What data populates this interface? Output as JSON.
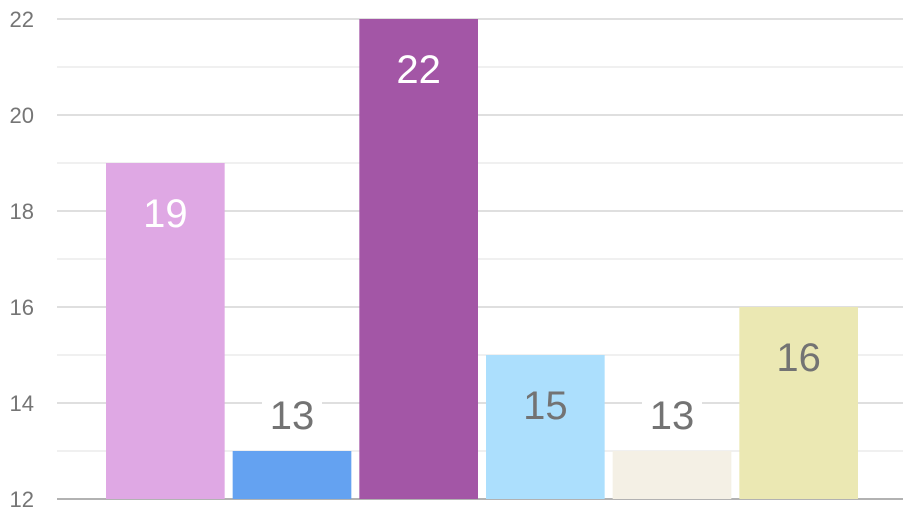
{
  "chart_data": {
    "type": "bar",
    "title": "",
    "xlabel": "",
    "ylabel": "",
    "ylim": [
      12,
      22
    ],
    "yticks": [
      12,
      14,
      16,
      18,
      20,
      22
    ],
    "minor_grid_step": 1,
    "grid": true,
    "legend": "none",
    "values": [
      19,
      13,
      22,
      15,
      13,
      16
    ],
    "colors": [
      "#dfa8e4",
      "#64a2f1",
      "#a356a6",
      "#acdffd",
      "#f4f0e5",
      "#ebe8b3"
    ],
    "label_colors": [
      "#ffffff",
      "#737373",
      "#ffffff",
      "#737373",
      "#737373",
      "#737373"
    ],
    "grid_color": "#cccccc",
    "axis_color": "#999999",
    "tick_label_color": "#757575"
  }
}
